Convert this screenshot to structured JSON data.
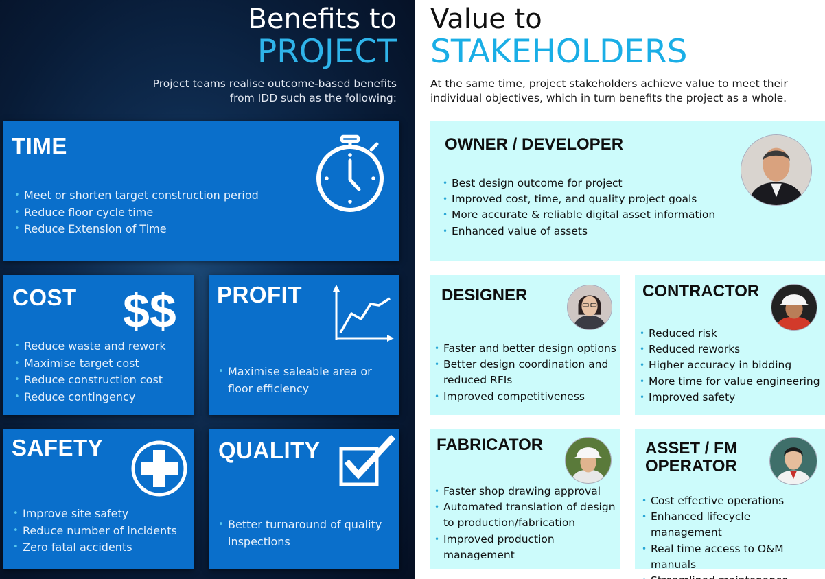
{
  "left": {
    "heading_line1": "Benefits to",
    "heading_line2": "PROJECT",
    "intro_line1": "Project teams realise outcome-based benefits",
    "intro_line2": "from IDD such as the following:",
    "cards": {
      "time": {
        "title": "TIME",
        "icon": "stopwatch-icon",
        "bullets": [
          "Meet or shorten target construction period",
          "Reduce floor cycle time",
          "Reduce Extension of Time"
        ]
      },
      "cost": {
        "title": "COST",
        "icon": "dollar-signs-icon",
        "bullets": [
          "Reduce waste and rework",
          "Maximise target cost",
          "Reduce construction cost",
          "Reduce contingency"
        ]
      },
      "profit": {
        "title": "PROFIT",
        "icon": "line-chart-icon",
        "bullets": [
          "Maximise saleable area or floor efficiency"
        ]
      },
      "safety": {
        "title": "SAFETY",
        "icon": "plus-circle-icon",
        "bullets": [
          "Improve site safety",
          "Reduce number of incidents",
          "Zero fatal accidents"
        ]
      },
      "quality": {
        "title": "QUALITY",
        "icon": "checkbox-icon",
        "bullets": [
          "Better turnaround of quality inspections"
        ]
      }
    }
  },
  "right": {
    "heading_line1": "Value to",
    "heading_line2": "STAKEHOLDERS",
    "intro_line1": "At the same time, project stakeholders achieve value to meet their",
    "intro_line2": "individual objectives, which in turn benefits the project as a whole.",
    "stakeholders": {
      "owner": {
        "title": "OWNER / DEVELOPER",
        "bullets": [
          "Best design outcome for project",
          "Improved cost, time, and quality project goals",
          "More accurate & reliable digital asset information",
          "Enhanced value of assets"
        ]
      },
      "designer": {
        "title": "DESIGNER",
        "bullets": [
          "Faster and better design options",
          "Better design coordination and reduced RFIs",
          "Improved competitiveness"
        ]
      },
      "contractor": {
        "title": "CONTRACTOR",
        "bullets": [
          "Reduced risk",
          "Reduced reworks",
          "Higher accuracy in bidding",
          "More time for value engineering",
          "Improved safety"
        ]
      },
      "fabricator": {
        "title": "FABRICATOR",
        "bullets": [
          "Faster shop drawing approval",
          "Automated translation of design to production/fabrication",
          "Improved production management"
        ]
      },
      "asset": {
        "title_line1": "ASSET / FM",
        "title_line2": "OPERATOR",
        "bullets": [
          "Cost effective operations",
          "Enhanced lifecycle management",
          "Real time access to O&M manuals",
          "Streamlined maintenance regime"
        ]
      }
    }
  },
  "colors": {
    "card_blue": "#0a6fcb",
    "accent_cyan": "#2fb4ea",
    "stakeholder_bg": "#ccfbfb"
  }
}
